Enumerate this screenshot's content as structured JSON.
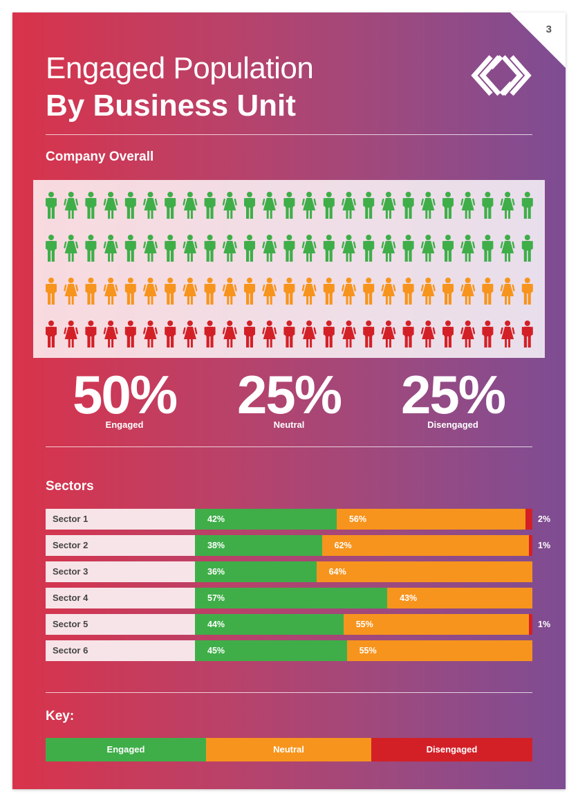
{
  "page": {
    "number": "3"
  },
  "header": {
    "title_line1": "Engaged Population",
    "title_line2": "By Business Unit"
  },
  "overall": {
    "label": "Company Overall",
    "stats": [
      {
        "value": "50%",
        "label": "Engaged"
      },
      {
        "value": "25%",
        "label": "Neutral"
      },
      {
        "value": "25%",
        "label": "Disengaged"
      }
    ]
  },
  "sectors_label": "Sectors",
  "key": {
    "title": "Key:",
    "items": [
      {
        "label": "Engaged",
        "color": "#3fae49"
      },
      {
        "label": "Neutral",
        "color": "#f7941d"
      },
      {
        "label": "Disengaged",
        "color": "#d32027"
      }
    ]
  },
  "chart_data": [
    {
      "type": "pictogram",
      "title": "Company Overall",
      "rows": [
        {
          "category": "Engaged",
          "icons": 25,
          "color": "#3fae49"
        },
        {
          "category": "Engaged",
          "icons": 25,
          "color": "#3fae49"
        },
        {
          "category": "Neutral",
          "icons": 25,
          "color": "#f7941d"
        },
        {
          "category": "Disengaged",
          "icons": 25,
          "color": "#d32027"
        }
      ],
      "icon_pattern": [
        "man",
        "woman"
      ],
      "values": {
        "Engaged": 50,
        "Neutral": 25,
        "Disengaged": 25
      }
    },
    {
      "type": "bar",
      "stacked": true,
      "orientation": "horizontal",
      "title": "Sectors",
      "categories": [
        "Sector 1",
        "Sector 2",
        "Sector 3",
        "Sector 4",
        "Sector 5",
        "Sector 6"
      ],
      "series": [
        {
          "name": "Engaged",
          "color": "#3fae49",
          "values": [
            42,
            38,
            36,
            57,
            44,
            45
          ],
          "labels": [
            "42%",
            "38%",
            "36%",
            "57%",
            "44%",
            "45%"
          ]
        },
        {
          "name": "Neutral",
          "color": "#f7941d",
          "values": [
            56,
            62,
            64,
            43,
            55,
            55
          ],
          "labels": [
            "56%",
            "62%",
            "64%",
            "43%",
            "55%",
            "55%"
          ]
        },
        {
          "name": "Disengaged",
          "color": "#d32027",
          "values": [
            2,
            1,
            0,
            0,
            1,
            0
          ],
          "labels": [
            "2%",
            "1%",
            "",
            "",
            "1%",
            ""
          ]
        }
      ],
      "xlim": [
        0,
        100
      ]
    }
  ]
}
